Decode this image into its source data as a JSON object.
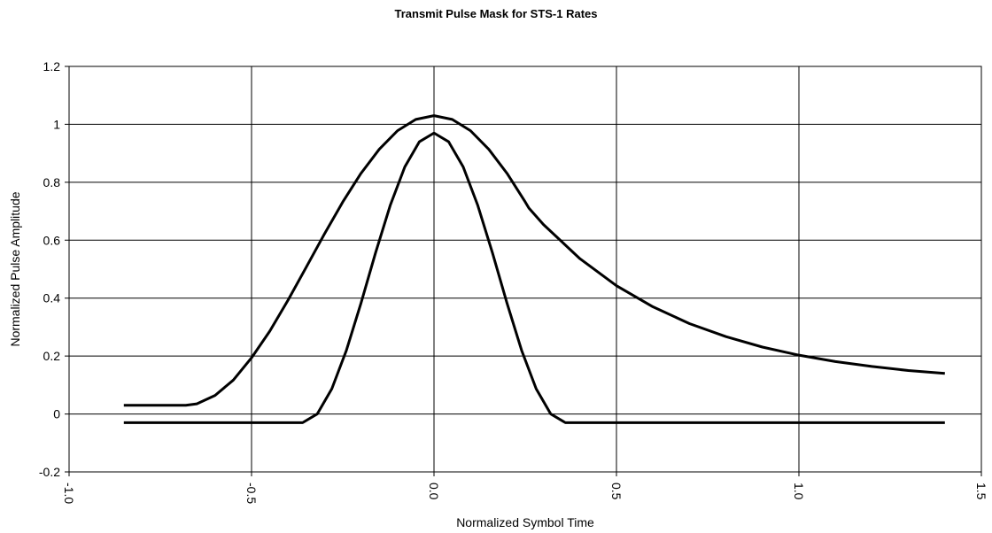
{
  "chart_data": {
    "type": "line",
    "title": "Transmit Pulse Mask for STS-1 Rates",
    "x_label": "Normalized Symbol Time",
    "y_label": "Normalized Pulse Amplitude",
    "xlim": [
      -1.0,
      1.5
    ],
    "xticks": [
      {
        "value": -1.0,
        "label": "-1.0"
      },
      {
        "value": -0.5,
        "label": "-0.5"
      },
      {
        "value": 0,
        "label": "0.0"
      },
      {
        "value": 0.5,
        "label": "0.5"
      },
      {
        "value": 1.0,
        "label": "1.0"
      },
      {
        "value": 1.5,
        "label": "1.5"
      }
    ],
    "ylim": [
      -0.2,
      1.2
    ],
    "yticks": [
      -0.2,
      0,
      0.2,
      0.4,
      0.6,
      0.8,
      1,
      1.2
    ],
    "grid": true,
    "series": [
      {
        "color": "#000000",
        "x": [
          -0.85,
          -0.68,
          -0.65,
          -0.6,
          -0.55,
          -0.5,
          -0.45,
          -0.4,
          -0.35,
          -0.3,
          -0.25,
          -0.2,
          -0.15,
          -0.1,
          -0.05,
          0,
          0.05,
          0.1,
          0.15,
          0.2,
          0.25,
          0.26,
          0.3,
          0.4,
          0.5,
          0.6,
          0.7,
          0.8,
          0.9,
          1.0,
          1.1,
          1.2,
          1.3,
          1.4
        ],
        "values": [
          0.03,
          0.03,
          0.035,
          0.064,
          0.117,
          0.194,
          0.286,
          0.393,
          0.507,
          0.622,
          0.732,
          0.831,
          0.914,
          0.978,
          1.017,
          1.03,
          1.017,
          0.978,
          0.914,
          0.831,
          0.732,
          0.711,
          0.654,
          0.536,
          0.443,
          0.37,
          0.312,
          0.267,
          0.231,
          0.203,
          0.181,
          0.164,
          0.15,
          0.14
        ]
      },
      {
        "color": "#000000",
        "x": [
          -0.85,
          -0.36,
          -0.32,
          -0.28,
          -0.24,
          -0.2,
          -0.16,
          -0.12,
          -0.08,
          -0.04,
          0,
          0.04,
          0.08,
          0.12,
          0.16,
          0.2,
          0.24,
          0.28,
          0.32,
          0.36,
          1.4
        ],
        "values": [
          -0.03,
          -0.03,
          0.0,
          0.087,
          0.22,
          0.383,
          0.557,
          0.72,
          0.853,
          0.94,
          0.97,
          0.94,
          0.853,
          0.72,
          0.557,
          0.383,
          0.22,
          0.087,
          0.0,
          -0.03,
          -0.03
        ]
      }
    ]
  }
}
